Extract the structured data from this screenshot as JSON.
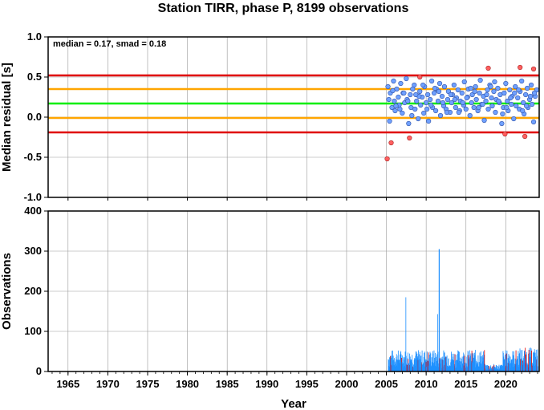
{
  "title": "Station TIRR, phase P, 8199 observations",
  "colors": {
    "median_line": "#00ee00",
    "smad_line": "#ffa500",
    "two_smad_line": "#e00000",
    "point_ok": "#6fa0ff",
    "point_out": "#ff6060",
    "bar_ok": "#1e90ff",
    "bar_out": "#e00000",
    "grid": "#9a9a9a"
  },
  "chart_data": [
    {
      "type": "scatter",
      "ylabel": "Median residual [s]",
      "annotation": "median = 0.17, smad = 0.18",
      "xlim": [
        1962.5,
        2024.2
      ],
      "ylim": [
        -1.0,
        1.0
      ],
      "x_ticks": [
        1965,
        1970,
        1975,
        1980,
        1985,
        1990,
        1995,
        2000,
        2005,
        2010,
        2015,
        2020
      ],
      "y_ticks": [
        1.0,
        0.5,
        0.0,
        -0.5,
        -1.0
      ],
      "y_tick_labels": [
        "1.0",
        "0.5",
        "0.0",
        "-0.5",
        "-1.0"
      ],
      "hlines": [
        {
          "y": 0.52,
          "role": "two_smad"
        },
        {
          "y": 0.35,
          "role": "smad"
        },
        {
          "y": 0.17,
          "role": "median"
        },
        {
          "y": -0.01,
          "role": "smad"
        },
        {
          "y": -0.19,
          "role": "two_smad"
        }
      ],
      "series_ok": {
        "x": [
          2005.2,
          2005.4,
          2005.5,
          2005.7,
          2005.9,
          2006.0,
          2006.1,
          2006.3,
          2006.5,
          2006.6,
          2006.8,
          2007.0,
          2007.1,
          2007.3,
          2007.5,
          2007.6,
          2007.8,
          2008.0,
          2008.1,
          2008.3,
          2008.5,
          2008.6,
          2008.8,
          2009.0,
          2009.2,
          2009.3,
          2009.5,
          2009.7,
          2009.8,
          2010.0,
          2010.2,
          2010.3,
          2010.5,
          2010.7,
          2010.8,
          2011.0,
          2011.2,
          2011.3,
          2011.5,
          2011.7,
          2011.8,
          2012.0,
          2012.2,
          2012.3,
          2012.5,
          2012.7,
          2012.8,
          2013.0,
          2013.2,
          2013.3,
          2013.5,
          2013.7,
          2013.8,
          2014.0,
          2014.2,
          2014.3,
          2014.5,
          2014.7,
          2014.8,
          2015.0,
          2015.2,
          2015.3,
          2015.5,
          2015.7,
          2015.8,
          2016.0,
          2016.2,
          2016.3,
          2016.5,
          2016.7,
          2016.8,
          2017.0,
          2017.2,
          2017.3,
          2017.5,
          2017.7,
          2017.8,
          2018.0,
          2018.2,
          2018.3,
          2018.5,
          2018.7,
          2018.8,
          2019.0,
          2019.2,
          2019.3,
          2019.5,
          2019.7,
          2019.8,
          2020.0,
          2020.2,
          2020.3,
          2020.5,
          2020.7,
          2020.8,
          2021.0,
          2021.2,
          2021.3,
          2021.5,
          2021.7,
          2021.8,
          2022.0,
          2022.2,
          2022.3,
          2022.5,
          2022.7,
          2022.8,
          2023.0,
          2023.2,
          2023.3,
          2023.5,
          2023.7,
          2023.9,
          2005.3,
          2006.2,
          2007.2,
          2008.2,
          2009.1,
          2010.1,
          2011.1,
          2012.1,
          2013.1,
          2014.1,
          2015.1,
          2016.1,
          2017.1,
          2018.1,
          2019.1,
          2020.1,
          2021.1,
          2022.1,
          2023.1,
          2005.8,
          2006.7,
          2007.7,
          2008.7,
          2009.6,
          2010.6,
          2011.6,
          2012.6,
          2013.6,
          2014.6,
          2015.6,
          2016.6,
          2017.6,
          2018.6,
          2019.6,
          2020.6,
          2021.6,
          2022.6,
          2023.6
        ],
        "y": [
          0.38,
          -0.05,
          0.3,
          0.12,
          0.45,
          0.2,
          0.08,
          0.35,
          0.25,
          0.15,
          0.42,
          0.05,
          0.3,
          0.18,
          0.48,
          0.22,
          -0.08,
          0.28,
          0.12,
          0.35,
          0.4,
          0.1,
          0.2,
          -0.02,
          0.32,
          0.15,
          0.25,
          0.05,
          0.38,
          0.18,
          0.28,
          -0.05,
          0.22,
          0.45,
          0.12,
          0.3,
          0.08,
          0.35,
          0.2,
          0.42,
          0.02,
          0.26,
          0.14,
          0.38,
          0.1,
          0.22,
          0.32,
          0.06,
          0.18,
          0.28,
          0.4,
          0.12,
          0.24,
          0.34,
          0.08,
          0.2,
          0.3,
          0.15,
          0.44,
          0.1,
          0.25,
          0.35,
          0.02,
          0.18,
          0.28,
          0.12,
          0.38,
          0.22,
          0.08,
          0.3,
          0.46,
          0.16,
          0.26,
          -0.04,
          0.2,
          0.34,
          0.1,
          0.4,
          0.24,
          0.14,
          0.32,
          0.06,
          0.22,
          0.36,
          0.18,
          0.28,
          -0.08,
          0.12,
          0.3,
          0.42,
          0.2,
          0.08,
          0.34,
          0.16,
          0.26,
          -0.02,
          0.38,
          0.14,
          0.24,
          0.1,
          0.32,
          0.45,
          0.18,
          0.04,
          0.28,
          0.36,
          0.12,
          0.22,
          0.4,
          0.16,
          -0.06,
          0.26,
          0.34,
          0.22,
          0.14,
          0.3,
          0.02,
          0.26,
          0.1,
          0.36,
          0.18,
          0.28,
          0.06,
          0.24,
          0.32,
          0.16,
          0.38,
          0.2,
          0.12,
          0.3,
          0.08,
          0.26,
          0.33,
          0.1,
          0.2,
          0.28,
          0.4,
          0.15,
          0.32,
          0.06,
          0.22,
          0.18,
          0.36,
          0.12,
          0.28,
          0.44,
          0.04,
          0.24,
          0.34,
          0.14,
          0.3
        ]
      },
      "series_outlier": {
        "x": [
          2005.1,
          2005.6,
          2007.9,
          2009.2,
          2017.8,
          2019.9,
          2021.8,
          2022.4,
          2023.5
        ],
        "y": [
          -0.52,
          -0.32,
          -0.26,
          0.5,
          0.61,
          -0.21,
          0.62,
          -0.24,
          0.6
        ]
      }
    },
    {
      "type": "bar",
      "ylabel": "Observations",
      "xlabel": "Year",
      "xlim": [
        1962.5,
        2024.2
      ],
      "ylim": [
        0,
        400
      ],
      "x_ticks": [
        1965,
        1970,
        1975,
        1980,
        1985,
        1990,
        1995,
        2000,
        2005,
        2010,
        2015,
        2020
      ],
      "y_ticks": [
        0,
        100,
        200,
        300,
        400
      ],
      "peaks": [
        {
          "x": 2007.4,
          "y": 185
        },
        {
          "x": 2011.4,
          "y": 143
        },
        {
          "x": 2011.6,
          "y": 305
        }
      ],
      "typical_level": 35
    }
  ]
}
